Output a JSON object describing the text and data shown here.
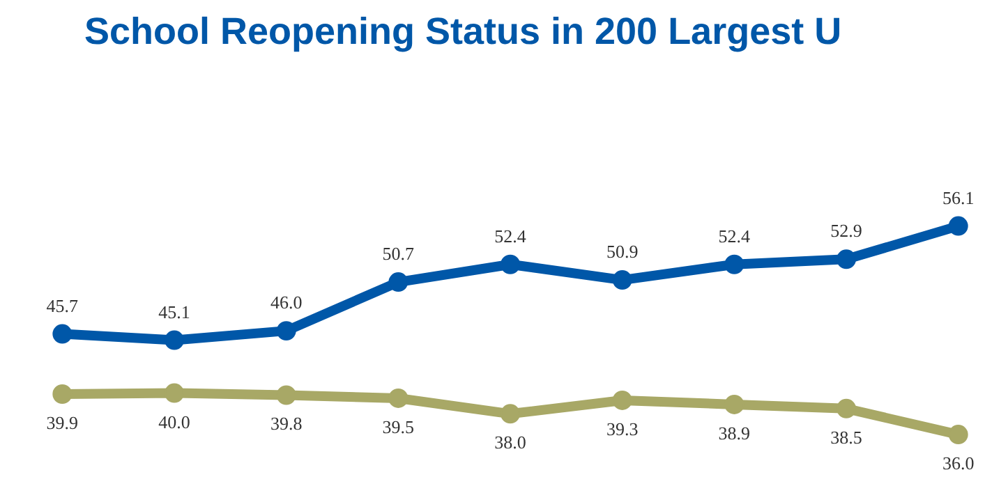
{
  "chart_data": {
    "type": "line",
    "title": "School Reopening Status in 200 Largest U",
    "categories": [
      null,
      null,
      null,
      null,
      null,
      null,
      null,
      null,
      null
    ],
    "series": [
      {
        "color": "#0057a8",
        "values": [
          45.7,
          45.1,
          46.0,
          50.7,
          52.4,
          50.9,
          52.4,
          52.9,
          56.1
        ],
        "value_labels": [
          "45.7",
          "45.1",
          "46.0",
          "50.7",
          "52.4",
          "50.9",
          "52.4",
          "52.9",
          "56.1"
        ]
      },
      {
        "color": "#a8a866",
        "values": [
          39.9,
          40.0,
          39.8,
          39.5,
          38.0,
          39.3,
          38.9,
          38.5,
          36.0
        ],
        "value_labels": [
          "39.9",
          "40.0",
          "39.8",
          "39.5",
          "38.0",
          "39.3",
          "38.9",
          "38.5",
          "36.0"
        ]
      }
    ],
    "marker": "circle",
    "line_style": "solid"
  }
}
